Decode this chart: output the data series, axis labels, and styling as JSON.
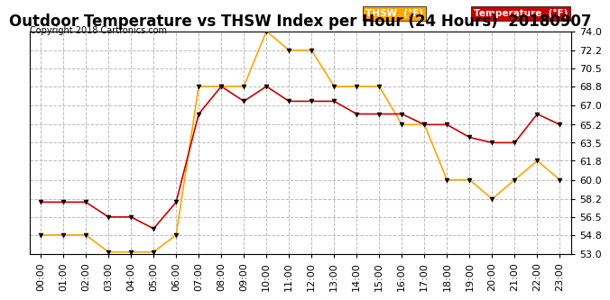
{
  "title": "Outdoor Temperature vs THSW Index per Hour (24 Hours)  20180907",
  "copyright": "Copyright 2018 Cartronics.com",
  "hours": [
    "00:00",
    "01:00",
    "02:00",
    "03:00",
    "04:00",
    "05:00",
    "06:00",
    "07:00",
    "08:00",
    "09:00",
    "10:00",
    "11:00",
    "12:00",
    "13:00",
    "14:00",
    "15:00",
    "16:00",
    "17:00",
    "18:00",
    "19:00",
    "20:00",
    "21:00",
    "22:00",
    "23:00"
  ],
  "thsw": [
    54.8,
    54.8,
    54.8,
    53.2,
    53.2,
    53.2,
    54.8,
    68.8,
    68.8,
    68.8,
    74.0,
    72.2,
    72.2,
    68.8,
    68.8,
    68.8,
    65.2,
    65.2,
    60.0,
    60.0,
    58.2,
    60.0,
    61.8,
    60.0
  ],
  "temp": [
    57.9,
    57.9,
    57.9,
    56.5,
    56.5,
    55.4,
    57.9,
    66.2,
    68.8,
    67.4,
    68.8,
    67.4,
    67.4,
    67.4,
    66.2,
    66.2,
    66.2,
    65.2,
    65.2,
    64.0,
    63.5,
    63.5,
    66.2,
    65.2
  ],
  "thsw_color": "#FFA500",
  "temp_color": "#CC0000",
  "bg_color": "#FFFFFF",
  "grid_color": "#BBBBBB",
  "yticks": [
    53.0,
    54.8,
    56.5,
    58.2,
    60.0,
    61.8,
    63.5,
    65.2,
    67.0,
    68.8,
    70.5,
    72.2,
    74.0
  ],
  "ymin": 53.0,
  "ymax": 74.0,
  "title_fontsize": 12,
  "copyright_fontsize": 7,
  "tick_fontsize": 8,
  "legend_thsw_label": "THSW  (°F)",
  "legend_temp_label": "Temperature  (°F)",
  "legend_thsw_bg": "#FFA500",
  "legend_temp_bg": "#CC0000",
  "legend_text_color": "#FFFFFF"
}
